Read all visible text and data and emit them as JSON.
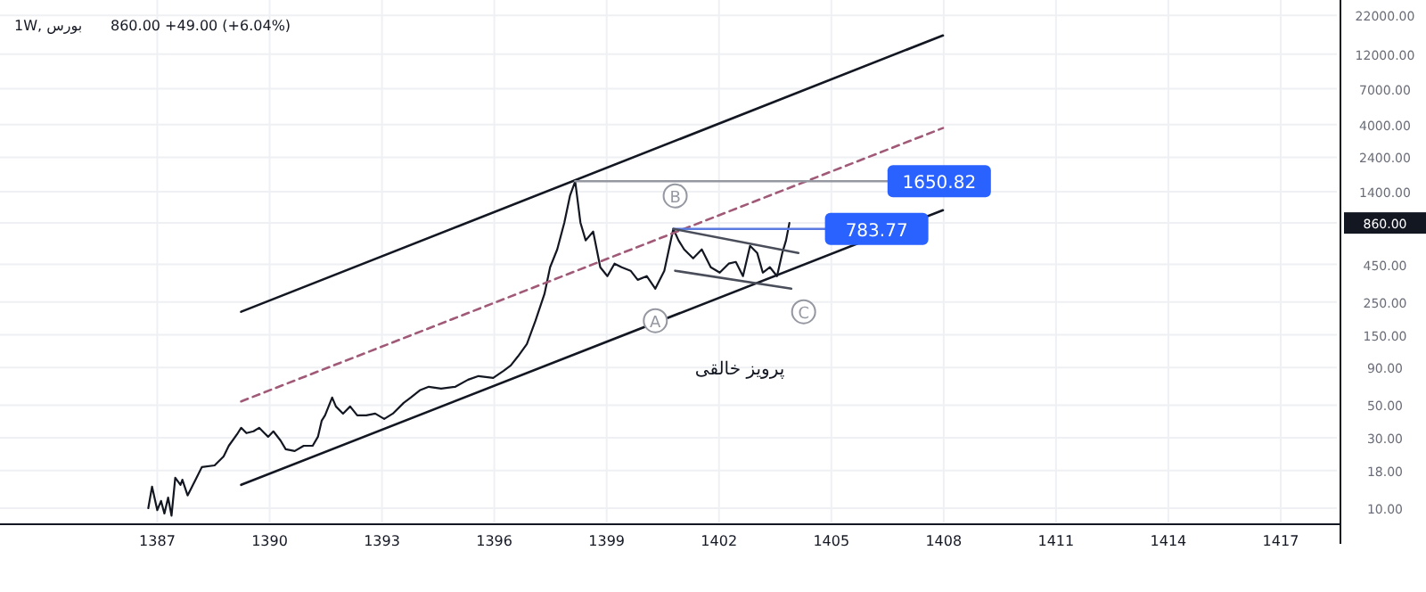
{
  "chart_data": {
    "type": "line",
    "title": "1W, بورس",
    "subtitle": "860.00 +49.00 (+6.04%)",
    "log": "y",
    "grid": true,
    "xlim": [
      1382.8,
      1418.5
    ],
    "ylim": [
      8,
      28000
    ],
    "xticks": [
      1387,
      1390,
      1393,
      1396,
      1399,
      1402,
      1405,
      1408,
      1411,
      1414,
      1417
    ],
    "yticks": [
      {
        "value": 10,
        "label": "10.00"
      },
      {
        "value": 18,
        "label": "18.00"
      },
      {
        "value": 30,
        "label": "30.00"
      },
      {
        "value": 50,
        "label": "50.00"
      },
      {
        "value": 90,
        "label": "90.00"
      },
      {
        "value": 150,
        "label": "150.00"
      },
      {
        "value": 250,
        "label": "250.00"
      },
      {
        "value": 450,
        "label": "450.00"
      },
      {
        "value": 860,
        "label": "860.00"
      },
      {
        "value": 1400,
        "label": "1400.00"
      },
      {
        "value": 2400,
        "label": "2400.00"
      },
      {
        "value": 4000,
        "label": "4000.00"
      },
      {
        "value": 7000,
        "label": "7000.00"
      },
      {
        "value": 12000,
        "label": "12000.00"
      },
      {
        "value": 22000,
        "label": "22000.00"
      }
    ],
    "series": [
      {
        "color": "#131722",
        "x": [
          1386.76,
          1386.86,
          1387.0,
          1387.1,
          1387.19,
          1387.29,
          1387.38,
          1387.48,
          1387.62,
          1387.67,
          1387.81,
          1388.05,
          1388.19,
          1388.53,
          1388.77,
          1388.91,
          1389.15,
          1389.24,
          1389.38,
          1389.57,
          1389.72,
          1389.86,
          1389.96,
          1390.1,
          1390.29,
          1390.43,
          1390.67,
          1390.91,
          1391.15,
          1391.29,
          1391.39,
          1391.48,
          1391.67,
          1391.77,
          1391.96,
          1392.15,
          1392.34,
          1392.58,
          1392.82,
          1393.06,
          1393.29,
          1393.58,
          1393.77,
          1394.01,
          1394.25,
          1394.58,
          1394.96,
          1395.3,
          1395.58,
          1395.97,
          1396.25,
          1396.44,
          1396.63,
          1396.87,
          1397.1,
          1397.34,
          1397.49,
          1397.68,
          1397.87,
          1398.02,
          1398.16,
          1398.3,
          1398.44,
          1398.64,
          1398.83,
          1399.02,
          1399.21,
          1399.4,
          1399.64,
          1399.83,
          1400.07,
          1400.3,
          1400.54,
          1400.78,
          1400.92,
          1401.07,
          1401.31,
          1401.54,
          1401.78,
          1402.02,
          1402.26,
          1402.45,
          1402.64,
          1402.83,
          1403.02,
          1403.17,
          1403.36,
          1403.55,
          1403.69,
          1403.79,
          1403.88
        ],
        "values": [
          10,
          14.0,
          9.7,
          11.2,
          9.2,
          11.8,
          8.9,
          16.1,
          14.4,
          15.6,
          12.2,
          16.1,
          19.0,
          19.5,
          22.4,
          26.5,
          32.3,
          35.1,
          32.3,
          33.2,
          35.1,
          32.3,
          30.5,
          33.2,
          28.8,
          25.1,
          24.4,
          26.5,
          26.5,
          30.5,
          39.2,
          42.6,
          56.3,
          49.0,
          43.8,
          49.0,
          42.6,
          42.6,
          43.8,
          40.3,
          43.8,
          51.8,
          56.3,
          63.0,
          66.6,
          64.7,
          66.6,
          74.4,
          78.7,
          76.5,
          85.6,
          93.0,
          107,
          130,
          187,
          284,
          431,
          569,
          865,
          1314,
          1650,
          865,
          655,
          752,
          431,
          375,
          456,
          431,
          408,
          354,
          375,
          308,
          408,
          784,
          655,
          569,
          495,
          569,
          431,
          396,
          456,
          468,
          375,
          602,
          539,
          396,
          431,
          375,
          539,
          655,
          860
        ]
      },
      {
        "color": "#131722",
        "x": [
          1389.24,
          1407.98
        ],
        "values": [
          215,
          16100
        ]
      },
      {
        "color": "#131722",
        "x": [
          1389.24,
          1407.98
        ],
        "values": [
          14.4,
          1051
        ]
      },
      {
        "color": "#a05a78",
        "line_style": "dashed",
        "x": [
          1389.24,
          1407.98
        ],
        "values": [
          53,
          3790
        ]
      },
      {
        "color": "#9598a1",
        "x": [
          1398.16,
          1406.5
        ],
        "values": [
          1650.82,
          1650.82
        ],
        "value_labels": [
          null,
          "1650.82"
        ]
      },
      {
        "color": "#5b7be0",
        "x": [
          1400.78,
          1404.83
        ],
        "values": [
          783.77,
          783.77
        ],
        "value_labels": [
          null,
          "783.77"
        ]
      },
      {
        "color": "#4a4e5a",
        "x": [
          1400.78,
          1404.12
        ],
        "values": [
          784,
          539
        ]
      },
      {
        "color": "#4a4e5a",
        "x": [
          1400.83,
          1403.93
        ],
        "values": [
          408,
          308
        ]
      }
    ],
    "annotations": [
      {
        "text": "A",
        "x": 1400.3,
        "y": 187
      },
      {
        "text": "B",
        "x": 1400.83,
        "y": 1314
      },
      {
        "text": "C",
        "x": 1404.26,
        "y": 215
      },
      "پرویز خالقی"
    ]
  }
}
